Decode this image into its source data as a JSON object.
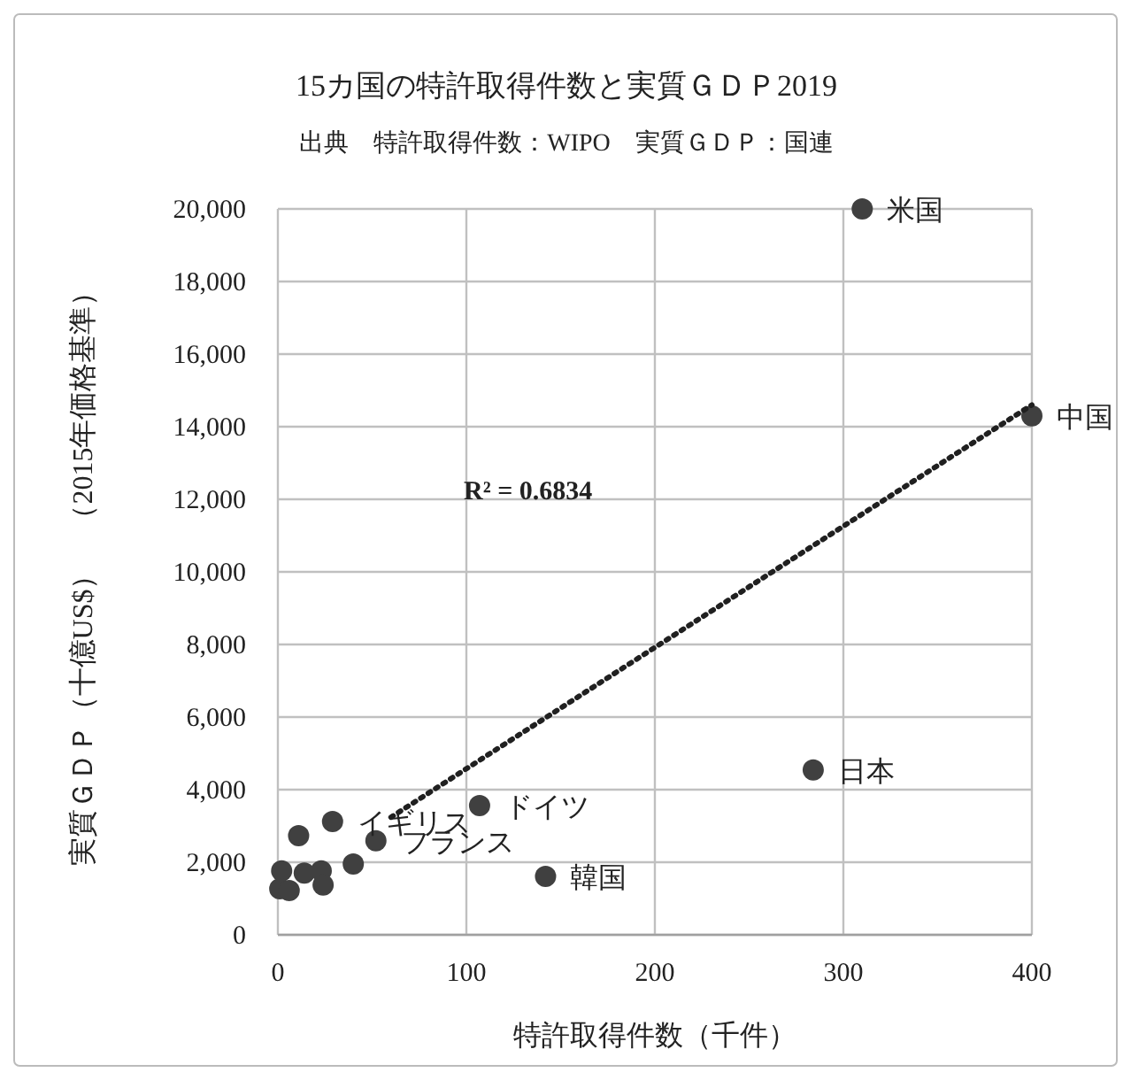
{
  "chart_data": {
    "type": "scatter",
    "title": "15カ国の特許取得件数と実質ＧＤＰ2019",
    "subtitle": "出典　特許取得件数：WIPO　実質ＧＤＰ：国連",
    "xlabel": "特許取得件数（千件）",
    "ylabel": "実質ＧＤＰ（十億US$）　（2015年価格基準）",
    "series": [
      {
        "marker": "circle",
        "color": "#404040",
        "x": [
          310,
          400,
          284,
          107,
          142,
          11,
          29,
          52,
          2,
          1,
          6,
          14,
          23,
          24,
          40
        ],
        "values": [
          20000,
          14300,
          4540,
          3560,
          1610,
          2730,
          3120,
          2590,
          1760,
          1270,
          1220,
          1700,
          1760,
          1370,
          1950
        ]
      },
      {
        "type": "line",
        "color": "#202020",
        "line_style": "dotted",
        "x": [
          60,
          400
        ],
        "values": [
          3240,
          14600
        ]
      }
    ],
    "xlim": [
      0,
      400
    ],
    "ylim": [
      0,
      20000
    ],
    "xticks": [
      0,
      100,
      200,
      300,
      400
    ],
    "yticks": [
      {
        "value": 0,
        "label": "0"
      },
      {
        "value": 2000,
        "label": "2,000"
      },
      {
        "value": 4000,
        "label": "4,000"
      },
      {
        "value": 6000,
        "label": "6,000"
      },
      {
        "value": 8000,
        "label": "8,000"
      },
      {
        "value": 10000,
        "label": "10,000"
      },
      {
        "value": 12000,
        "label": "12,000"
      },
      {
        "value": 14000,
        "label": "14,000"
      },
      {
        "value": 16000,
        "label": "16,000"
      },
      {
        "value": 18000,
        "label": "18,000"
      },
      {
        "value": 20000,
        "label": "20,000"
      }
    ],
    "grid": true,
    "annotations": [
      "R² = 0.6834",
      {
        "text": "米国",
        "x": 310,
        "y": 20000
      },
      {
        "text": "中国",
        "x": 400,
        "y": 14300
      },
      {
        "text": "日本",
        "x": 284,
        "y": 4540
      },
      {
        "text": "ドイツ",
        "x": 107,
        "y": 3560
      },
      {
        "text": "韓国",
        "x": 142,
        "y": 1610
      },
      {
        "text": "イギリス",
        "x": 29,
        "y": 3120
      },
      {
        "text": "フランス",
        "x": 52,
        "y": 2590
      }
    ]
  }
}
